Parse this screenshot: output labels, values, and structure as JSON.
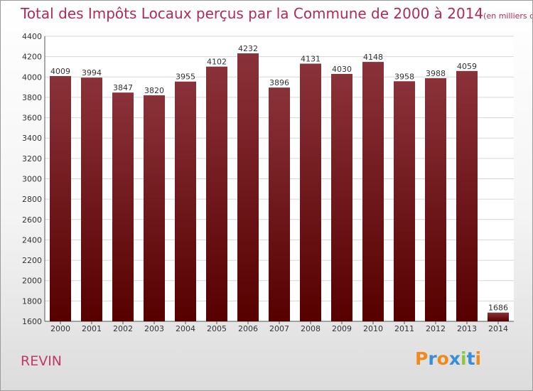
{
  "title": "Total des Impôts Locaux perçus par la Commune de 2000 à 2014",
  "title_unit": "(en milliers d'€)",
  "commune": "REVIN",
  "logo_text": "Proxiti",
  "colors": {
    "bar_top": "#8a3239",
    "bar_bottom": "#560000",
    "title": "#b22a55",
    "commune": "#c23a64"
  },
  "chart_data": {
    "type": "bar",
    "categories": [
      "2000",
      "2001",
      "2002",
      "2003",
      "2004",
      "2005",
      "2006",
      "2007",
      "2008",
      "2009",
      "2010",
      "2011",
      "2012",
      "2013",
      "2014"
    ],
    "values": [
      4009,
      3994,
      3847,
      3820,
      3955,
      4102,
      4232,
      3896,
      4131,
      4030,
      4148,
      3958,
      3988,
      4059,
      1686
    ],
    "title": "Total des Impôts Locaux perçus par la Commune de 2000 à 2014",
    "xlabel": "",
    "ylabel": "",
    "ylim": [
      1600,
      4400
    ],
    "yticks": [
      1600,
      1800,
      2000,
      2200,
      2400,
      2600,
      2800,
      3000,
      3200,
      3400,
      3600,
      3800,
      4000,
      4200,
      4400
    ],
    "grid": true,
    "value_labels": true
  }
}
